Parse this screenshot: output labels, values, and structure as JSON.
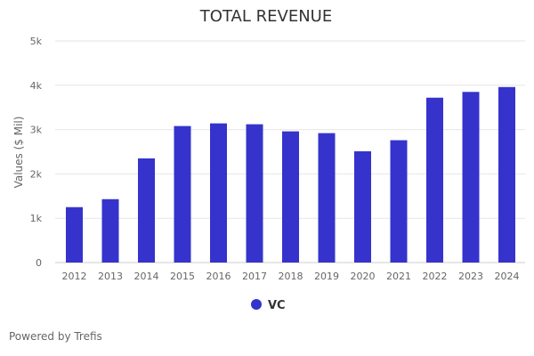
{
  "chart_data": {
    "type": "bar",
    "title": "TOTAL REVENUE",
    "xlabel": "",
    "ylabel": "Values ($ Mil)",
    "categories": [
      "2012",
      "2013",
      "2014",
      "2015",
      "2016",
      "2017",
      "2018",
      "2019",
      "2020",
      "2021",
      "2022",
      "2023",
      "2024"
    ],
    "series": [
      {
        "name": "VC",
        "color": "#3533cc",
        "values": [
          1250,
          1430,
          2350,
          3080,
          3140,
          3120,
          2960,
          2920,
          2510,
          2760,
          3720,
          3850,
          3960
        ]
      }
    ],
    "ylim": [
      0,
      5000
    ],
    "yticks": [
      0,
      1000,
      2000,
      3000,
      4000,
      5000
    ],
    "ytick_labels": [
      "0",
      "1k",
      "2k",
      "3k",
      "4k",
      "5k"
    ],
    "grid": true,
    "legend": "bottom-center"
  },
  "credit": "Powered by Trefis",
  "colors": {
    "bar": "#3533cc",
    "grid": "#e6e6e6",
    "text": "#333333",
    "muted": "#666666"
  }
}
